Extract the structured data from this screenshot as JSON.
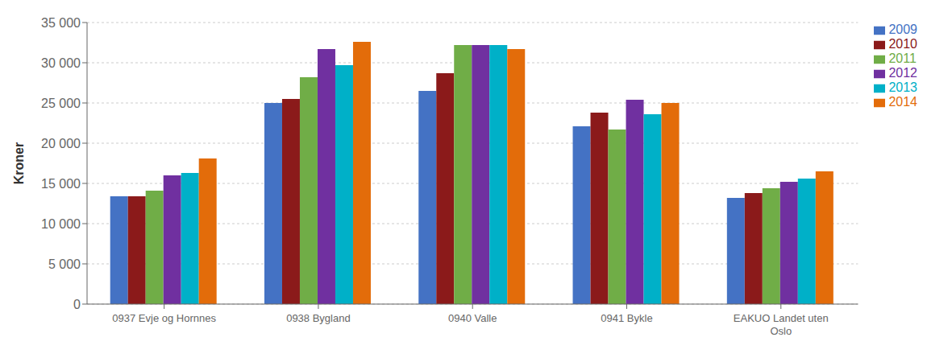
{
  "chart_data": {
    "type": "bar",
    "categories": [
      "0937 Evje og Hornnes",
      "0938 Bygland",
      "0940 Valle",
      "0941 Bykle",
      "EAKUO Landet uten\nOslo"
    ],
    "series": [
      {
        "name": "2009",
        "color": "#4472C4",
        "values": [
          13400,
          25000,
          26500,
          22100,
          13200
        ]
      },
      {
        "name": "2010",
        "color": "#8B1A1A",
        "values": [
          13400,
          25500,
          28700,
          23800,
          13800
        ]
      },
      {
        "name": "2011",
        "color": "#70AD47",
        "values": [
          14100,
          28200,
          32200,
          21700,
          14400
        ]
      },
      {
        "name": "2012",
        "color": "#7030A0",
        "values": [
          16000,
          31700,
          32200,
          25400,
          15200
        ]
      },
      {
        "name": "2013",
        "color": "#00B0C8",
        "values": [
          16300,
          29700,
          32200,
          23600,
          15600
        ]
      },
      {
        "name": "2014",
        "color": "#E36C0A",
        "values": [
          18100,
          32600,
          31700,
          25000,
          16500
        ]
      }
    ],
    "ylabel": "Kroner",
    "ylim": [
      0,
      35000
    ],
    "yticks": [
      0,
      {
        "value": 5000,
        "label": "5 000"
      },
      {
        "value": 10000,
        "label": "10 000"
      },
      {
        "value": 15000,
        "label": "15 000"
      },
      {
        "value": 20000,
        "label": "20 000"
      },
      {
        "value": 25000,
        "label": "25 000"
      },
      {
        "value": 30000,
        "label": "30 000"
      },
      {
        "value": 35000,
        "label": "35 000"
      }
    ],
    "grid": true,
    "legend": "right"
  }
}
